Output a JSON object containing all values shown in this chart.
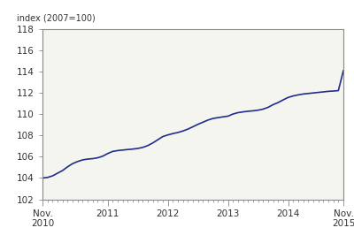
{
  "ylabel": "index (2007=100)",
  "ylim": [
    102,
    118
  ],
  "yticks": [
    102,
    104,
    106,
    108,
    110,
    112,
    114,
    116,
    118
  ],
  "line_color": "#1f2d8c",
  "line_width": 1.2,
  "background_color": "#ffffff",
  "plot_bg_color": "#f5f5f0",
  "spine_color": "#888888",
  "tick_color": "#888888",
  "label_color": "#333333",
  "ylabel_fontsize": 7.0,
  "tick_fontsize": 7.5,
  "x_tick_labels": [
    "Nov.\n2010",
    "2011",
    "2012",
    "2013",
    "2014",
    "Nov.\n2015"
  ],
  "x_tick_positions": [
    0,
    13,
    25,
    37,
    49,
    60
  ],
  "values": [
    104.0,
    104.05,
    104.2,
    104.45,
    104.7,
    105.05,
    105.35,
    105.55,
    105.7,
    105.78,
    105.82,
    105.9,
    106.05,
    106.3,
    106.5,
    106.58,
    106.63,
    106.68,
    106.72,
    106.78,
    106.88,
    107.05,
    107.3,
    107.6,
    107.9,
    108.05,
    108.18,
    108.28,
    108.42,
    108.6,
    108.82,
    109.05,
    109.25,
    109.45,
    109.6,
    109.68,
    109.75,
    109.82,
    110.02,
    110.15,
    110.22,
    110.28,
    110.32,
    110.38,
    110.48,
    110.65,
    110.9,
    111.1,
    111.35,
    111.58,
    111.72,
    111.82,
    111.9,
    111.95,
    112.0,
    112.05,
    112.1,
    112.15,
    112.18,
    112.22,
    114.1
  ]
}
